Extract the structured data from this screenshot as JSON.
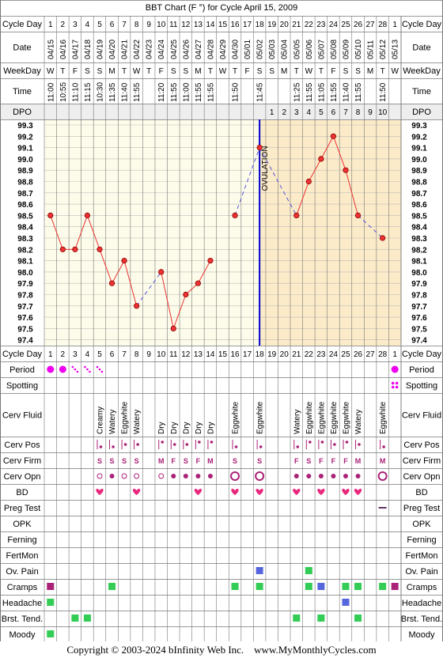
{
  "title": "BBT Chart (F °) for Cycle April 15, 2009",
  "footer": {
    "copyright": "Copyright © 2003-2024 bInfinity Web Inc.",
    "site": "www.MyMonthlyCycles.com"
  },
  "colors": {
    "temp_line": "#ee3333",
    "dashed_line": "#5555dd",
    "ovulation_line": "#0000cc",
    "post_ovulation_fill": "#fcebc8",
    "pre_ovulation_fill": "#fdfcea",
    "grid": "#888888",
    "period": "#ee00ee",
    "heart": "#e8287c",
    "green_marker": "#33cc55",
    "blue_marker": "#5566dd",
    "purple_marker": "#aa2277",
    "dpo_row": "#eeeeee"
  },
  "labels": {
    "cycle_day": "Cycle Day",
    "date": "Date",
    "weekday": "WeekDay",
    "time": "Time",
    "dpo": "DPO",
    "ovulation": "OVULATION",
    "period": "Period",
    "spotting": "Spotting",
    "cerv_fluid": "Cerv Fluid",
    "cerv_pos": "Cerv Pos",
    "cerv_firm": "Cerv Firm",
    "cerv_opn": "Cerv Opn",
    "bd": "BD",
    "preg_test": "Preg Test",
    "opk": "OPK",
    "ferning": "Ferning",
    "fertmon": "FertMon",
    "ov_pain": "Ov. Pain",
    "cramps": "Cramps",
    "headache": "Headache",
    "brst_tend": "Brst. Tend.",
    "moody": "Moody"
  },
  "chart_data": {
    "type": "line",
    "title": "BBT Chart (F °) for Cycle April 15, 2009",
    "ylim": [
      97.4,
      99.3
    ],
    "y_ticks": [
      "99.3",
      "99.2",
      "99.1",
      "99.0",
      "98.9",
      "98.8",
      "98.7",
      "98.6",
      "98.5",
      "98.4",
      "98.3",
      "98.2",
      "98.1",
      "98.0",
      "97.9",
      "97.8",
      "97.7",
      "97.6",
      "97.5",
      "97.4"
    ],
    "ovulation_day": 18,
    "cycle_days": [
      1,
      2,
      3,
      4,
      5,
      6,
      7,
      8,
      9,
      10,
      11,
      12,
      13,
      14,
      15,
      16,
      17,
      18,
      19,
      20,
      21,
      22,
      23,
      24,
      25,
      26,
      27,
      28,
      1
    ],
    "dates": [
      "04/15",
      "04/16",
      "04/17",
      "04/18",
      "04/19",
      "04/20",
      "04/21",
      "04/22",
      "04/23",
      "04/24",
      "04/25",
      "04/26",
      "04/27",
      "04/28",
      "04/29",
      "04/30",
      "05/01",
      "05/02",
      "05/03",
      "05/04",
      "05/05",
      "05/06",
      "05/07",
      "05/08",
      "05/09",
      "05/10",
      "05/11",
      "05/12",
      "05/13"
    ],
    "weekdays": [
      "W",
      "T",
      "F",
      "S",
      "S",
      "M",
      "T",
      "W",
      "T",
      "F",
      "S",
      "S",
      "M",
      "T",
      "W",
      "T",
      "F",
      "S",
      "S",
      "M",
      "T",
      "W",
      "T",
      "F",
      "S",
      "S",
      "M",
      "T",
      "W"
    ],
    "times": [
      "11:00",
      "10:55",
      "11:10",
      "11:15",
      "10:30",
      "11:35",
      "11:40",
      "11:55",
      "",
      "11:20",
      "11:55",
      "11:00",
      "11:55",
      "11:55",
      "",
      "11:50",
      "",
      "11:45",
      "",
      "",
      "11:25",
      "11:55",
      "11:05",
      "11:55",
      "11:40",
      "11:55",
      "",
      "11:50",
      ""
    ],
    "dpo": [
      "",
      "",
      "",
      "",
      "",
      "",
      "",
      "",
      "",
      "",
      "",
      "",
      "",
      "",
      "",
      "",
      "",
      "",
      "1",
      "2",
      "3",
      "4",
      "5",
      "6",
      "7",
      "8",
      "9",
      "10",
      ""
    ],
    "series": [
      {
        "values": [
          98.5,
          98.2,
          98.2,
          98.5,
          98.2,
          97.9,
          98.1,
          97.7,
          null,
          98.0,
          97.5,
          97.8,
          97.9,
          98.1,
          null,
          98.5,
          null,
          99.1,
          null,
          null,
          98.5,
          98.8,
          99.0,
          99.2,
          98.9,
          98.5,
          null,
          98.3,
          null
        ]
      }
    ],
    "dashed_segments": [
      [
        8,
        10
      ],
      [
        16,
        18
      ],
      [
        18,
        21
      ],
      [
        26,
        28
      ]
    ],
    "period": [
      "big",
      "big",
      "small",
      "small",
      "small",
      "",
      "",
      "",
      "",
      "",
      "",
      "",
      "",
      "",
      "",
      "",
      "",
      "",
      "",
      "",
      "",
      "",
      "",
      "",
      "",
      "",
      "",
      "",
      "big"
    ],
    "spotting": [
      false,
      false,
      false,
      false,
      false,
      false,
      false,
      false,
      false,
      false,
      false,
      false,
      false,
      false,
      false,
      false,
      false,
      false,
      false,
      false,
      false,
      false,
      false,
      false,
      false,
      false,
      false,
      false,
      true
    ],
    "cerv_fluid": [
      "",
      "",
      "",
      "",
      "Creamy",
      "Watery",
      "Eggwhite",
      "Watery",
      "",
      "Dry",
      "Dry",
      "Dry",
      "Dry",
      "Dry",
      "",
      "Eggwhite",
      "",
      "Eggwhite",
      "",
      "",
      "Watery",
      "Eggwhite",
      "Eggwhite",
      "Eggwhite",
      "Eggwhite",
      "Watery",
      "",
      "Eggwhite",
      ""
    ],
    "cerv_pos": [
      "",
      "",
      "",
      "",
      "lo",
      "lo",
      "mid",
      "mid",
      "",
      "hi",
      "mid",
      "mid",
      "hi",
      "hi",
      "",
      "lo",
      "",
      "lo",
      "",
      "",
      "lo",
      "hi",
      "hi",
      "mid",
      "hi",
      "mid",
      "",
      "lo",
      ""
    ],
    "cerv_firm": [
      "",
      "",
      "",
      "",
      "S",
      "S",
      "S",
      "S",
      "",
      "M",
      "F",
      "S",
      "F",
      "M",
      "",
      "S",
      "",
      "S",
      "",
      "",
      "F",
      "S",
      "F",
      "F",
      "F",
      "M",
      "",
      "M",
      ""
    ],
    "cerv_opn": [
      "",
      "",
      "",
      "",
      "o",
      "dot",
      "o",
      "o",
      "",
      "o",
      "dot",
      "dot",
      "dot",
      "dot",
      "",
      "O",
      "",
      "O",
      "",
      "",
      "dot",
      "dot",
      "dot",
      "dot",
      "dot",
      "dot",
      "",
      "O",
      ""
    ],
    "bd": [
      false,
      false,
      false,
      false,
      true,
      false,
      false,
      true,
      false,
      false,
      false,
      false,
      true,
      false,
      false,
      true,
      false,
      true,
      false,
      false,
      true,
      false,
      true,
      false,
      true,
      true,
      false,
      false,
      false
    ],
    "preg_test": [
      28
    ],
    "ov_pain": [
      18,
      22
    ],
    "cramps": [
      {
        "day": 1,
        "c": "purple"
      },
      {
        "day": 6,
        "c": "green"
      },
      {
        "day": 16,
        "c": "green"
      },
      {
        "day": 18,
        "c": "green"
      },
      {
        "day": 22,
        "c": "green"
      },
      {
        "day": 23,
        "c": "blue"
      },
      {
        "day": 25,
        "c": "green"
      },
      {
        "day": 26,
        "c": "green"
      },
      {
        "day": 28,
        "c": "green"
      },
      {
        "day": 29,
        "c": "purple"
      }
    ],
    "headache": [
      {
        "day": 1,
        "c": "green"
      },
      {
        "day": 25,
        "c": "blue"
      }
    ],
    "brst_tend": [
      {
        "day": 3,
        "c": "green"
      },
      {
        "day": 4,
        "c": "green"
      },
      {
        "day": 21,
        "c": "green"
      },
      {
        "day": 23,
        "c": "green"
      },
      {
        "day": 26,
        "c": "green"
      }
    ],
    "moody": [
      {
        "day": 1,
        "c": "green"
      }
    ]
  }
}
